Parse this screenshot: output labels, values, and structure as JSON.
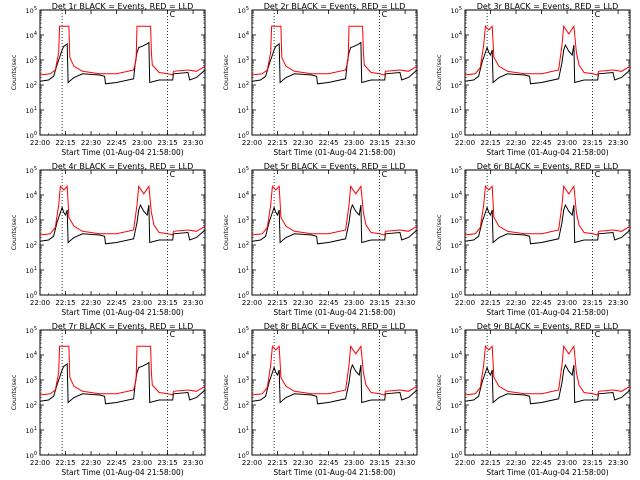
{
  "chart_data": [
    {
      "type": "line",
      "title": "Det 1r BLACK = Events, RED = LLD",
      "ylabel": "Counts/sec",
      "xlabel": "Start Time (01-Aug-04 21:58:00)",
      "x_ticks": [
        "22:00",
        "22:15",
        "22:30",
        "22:45",
        "23:00",
        "23:15",
        "23:30"
      ],
      "y_ticks": [
        "10^0",
        "10^1",
        "10^2",
        "10^3",
        "10^4",
        "10^5"
      ],
      "ylim": [
        1,
        100000
      ],
      "y_scale": "log",
      "xlim": [
        "22:00",
        "23:37"
      ],
      "vlines": [
        "22:13",
        "23:15"
      ],
      "annotation": "C",
      "series": [
        {
          "color": "#000000",
          "profile": "sat"
        },
        {
          "color": "#ff0000",
          "profile": "sat"
        }
      ]
    },
    {
      "type": "line",
      "title": "Det 2r BLACK = Events, RED = LLD",
      "ylabel": "Counts/sec",
      "xlabel": "Start Time (01-Aug-04 21:58:00)",
      "x_ticks": [
        "22:00",
        "22:15",
        "22:30",
        "22:45",
        "23:00",
        "23:15",
        "23:30"
      ],
      "y_ticks": [
        "10^0",
        "10^1",
        "10^2",
        "10^3",
        "10^4",
        "10^5"
      ],
      "ylim": [
        1,
        100000
      ],
      "y_scale": "log",
      "xlim": [
        "22:00",
        "23:37"
      ],
      "vlines": [
        "22:13",
        "23:15"
      ],
      "annotation": "C",
      "series": [
        {
          "color": "#000000",
          "profile": "sat"
        },
        {
          "color": "#ff0000",
          "profile": "sat"
        }
      ]
    },
    {
      "type": "line",
      "title": "Det 3r BLACK = Events, RED = LLD",
      "ylabel": "Counts/sec",
      "xlabel": "Start Time (01-Aug-04 21:58:00)",
      "x_ticks": [
        "22:00",
        "22:15",
        "22:30",
        "22:45",
        "23:00",
        "23:15",
        "23:30"
      ],
      "y_ticks": [
        "10^0",
        "10^1",
        "10^2",
        "10^3",
        "10^4",
        "10^5"
      ],
      "ylim": [
        1,
        100000
      ],
      "y_scale": "log",
      "xlim": [
        "22:00",
        "23:37"
      ],
      "vlines": [
        "22:13",
        "23:15"
      ],
      "annotation": "C",
      "series": [
        {
          "color": "#000000",
          "profile": "dip"
        },
        {
          "color": "#ff0000",
          "profile": "dip"
        }
      ]
    },
    {
      "type": "line",
      "title": "Det 4r BLACK = Events, RED = LLD",
      "ylabel": "Counts/sec",
      "xlabel": "Start Time (01-Aug-04 21:58:00)",
      "x_ticks": [
        "22:00",
        "22:15",
        "22:30",
        "22:45",
        "23:00",
        "23:15",
        "23:30"
      ],
      "y_ticks": [
        "10^0",
        "10^1",
        "10^2",
        "10^3",
        "10^4",
        "10^5"
      ],
      "ylim": [
        1,
        100000
      ],
      "y_scale": "log",
      "xlim": [
        "22:00",
        "23:37"
      ],
      "vlines": [
        "22:13",
        "23:15"
      ],
      "annotation": "C",
      "series": [
        {
          "color": "#000000",
          "profile": "dip"
        },
        {
          "color": "#ff0000",
          "profile": "dip"
        }
      ]
    },
    {
      "type": "line",
      "title": "Det 5r BLACK = Events, RED = LLD",
      "ylabel": "Counts/sec",
      "xlabel": "Start Time (01-Aug-04 21:58:00)",
      "x_ticks": [
        "22:00",
        "22:15",
        "22:30",
        "22:45",
        "23:00",
        "23:15",
        "23:30"
      ],
      "y_ticks": [
        "10^0",
        "10^1",
        "10^2",
        "10^3",
        "10^4",
        "10^5"
      ],
      "ylim": [
        1,
        100000
      ],
      "y_scale": "log",
      "xlim": [
        "22:00",
        "23:37"
      ],
      "vlines": [
        "22:13",
        "23:15"
      ],
      "annotation": "C",
      "series": [
        {
          "color": "#000000",
          "profile": "dip"
        },
        {
          "color": "#ff0000",
          "profile": "dip"
        }
      ]
    },
    {
      "type": "line",
      "title": "Det 6r BLACK = Events, RED = LLD",
      "ylabel": "Counts/sec",
      "xlabel": "Start Time (01-Aug-04 21:58:00)",
      "x_ticks": [
        "22:00",
        "22:15",
        "22:30",
        "22:45",
        "23:00",
        "23:15",
        "23:30"
      ],
      "y_ticks": [
        "10^0",
        "10^1",
        "10^2",
        "10^3",
        "10^4",
        "10^5"
      ],
      "ylim": [
        1,
        100000
      ],
      "y_scale": "log",
      "xlim": [
        "22:00",
        "23:37"
      ],
      "vlines": [
        "22:13",
        "23:15"
      ],
      "annotation": "C",
      "series": [
        {
          "color": "#000000",
          "profile": "dip"
        },
        {
          "color": "#ff0000",
          "profile": "dip"
        }
      ]
    },
    {
      "type": "line",
      "title": "Det 7r BLACK = Events, RED = LLD",
      "ylabel": "Counts/sec",
      "xlabel": "Start Time (01-Aug-04 21:58:00)",
      "x_ticks": [
        "22:00",
        "22:15",
        "22:30",
        "22:45",
        "23:00",
        "23:15",
        "23:30"
      ],
      "y_ticks": [
        "10^0",
        "10^1",
        "10^2",
        "10^3",
        "10^4",
        "10^5"
      ],
      "ylim": [
        1,
        100000
      ],
      "y_scale": "log",
      "xlim": [
        "22:00",
        "23:37"
      ],
      "vlines": [
        "22:13",
        "23:15"
      ],
      "annotation": "C",
      "series": [
        {
          "color": "#000000",
          "profile": "sat"
        },
        {
          "color": "#ff0000",
          "profile": "sat"
        }
      ]
    },
    {
      "type": "line",
      "title": "Det 8r BLACK = Events, RED = LLD",
      "ylabel": "Counts/sec",
      "xlabel": "Start Time (01-Aug-04 21:58:00)",
      "x_ticks": [
        "22:00",
        "22:15",
        "22:30",
        "22:45",
        "23:00",
        "23:15",
        "23:30"
      ],
      "y_ticks": [
        "10^0",
        "10^1",
        "10^2",
        "10^3",
        "10^4",
        "10^5"
      ],
      "ylim": [
        1,
        100000
      ],
      "y_scale": "log",
      "xlim": [
        "22:00",
        "23:37"
      ],
      "vlines": [
        "22:13",
        "23:15"
      ],
      "annotation": "C",
      "series": [
        {
          "color": "#000000",
          "profile": "dip"
        },
        {
          "color": "#ff0000",
          "profile": "dip"
        }
      ]
    },
    {
      "type": "line",
      "title": "Det 9r BLACK = Events, RED = LLD",
      "ylabel": "Counts/sec",
      "xlabel": "Start Time (01-Aug-04 21:58:00)",
      "x_ticks": [
        "22:00",
        "22:15",
        "22:30",
        "22:45",
        "23:00",
        "23:15",
        "23:30"
      ],
      "y_ticks": [
        "10^0",
        "10^1",
        "10^2",
        "10^3",
        "10^4",
        "10^5"
      ],
      "ylim": [
        1,
        100000
      ],
      "y_scale": "log",
      "xlim": [
        "22:00",
        "23:37"
      ],
      "vlines": [
        "22:13",
        "23:15"
      ],
      "annotation": "C",
      "series": [
        {
          "color": "#000000",
          "profile": "dip"
        },
        {
          "color": "#ff0000",
          "profile": "dip"
        }
      ]
    }
  ]
}
